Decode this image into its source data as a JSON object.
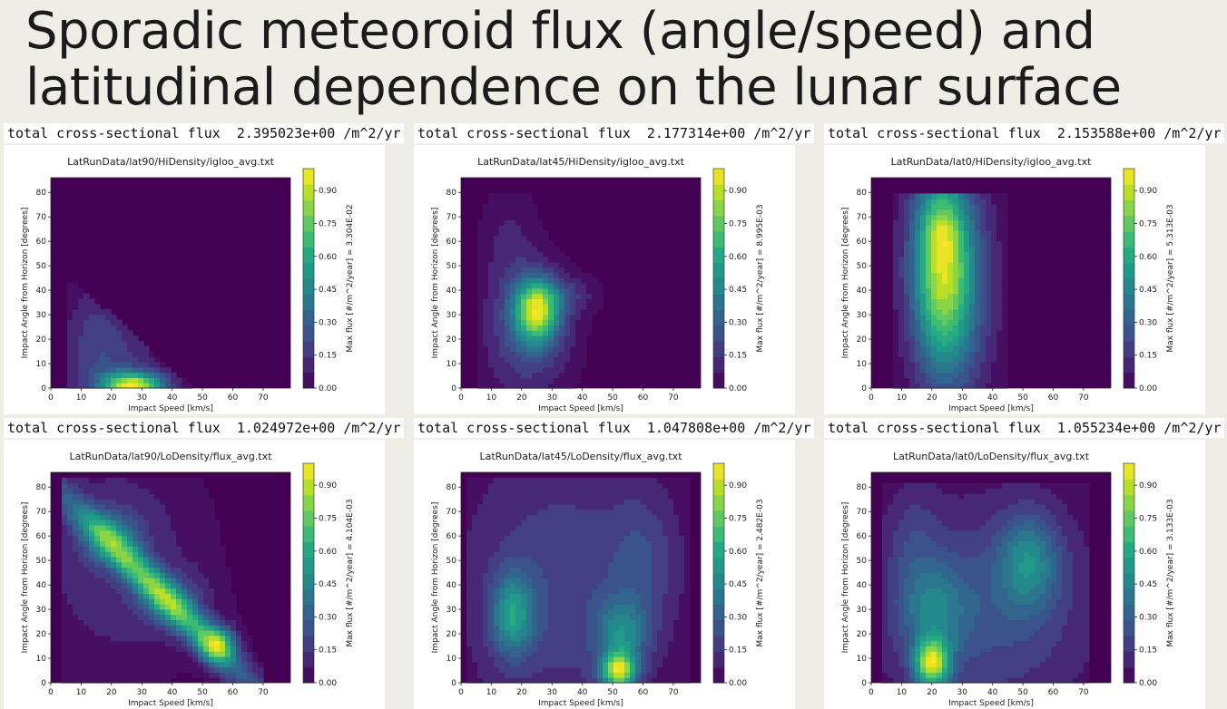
{
  "slide": {
    "title_line1": "Sporadic meteoroid flux (angle/speed) and",
    "title_line2": "latitudinal dependence on the lunar surface"
  },
  "colormap": "viridis",
  "chart_data": [
    {
      "type": "heatmap",
      "flux_label": "total cross-sectional flux  2.395023e+00 /m^2/yr",
      "title": "LatRunData/lat90/HiDensity/igloo_avg.txt",
      "xlabel": "Impact Speed [km/s]",
      "ylabel": "Impact Angle from Horizon [degrees]",
      "colorbar_label": "Max flux [#/m^2/year] = 3.304E-02",
      "xticks": [
        0,
        10,
        20,
        30,
        40,
        50,
        60,
        70
      ],
      "yticks": [
        0,
        10,
        20,
        30,
        40,
        50,
        60,
        70,
        80
      ],
      "colorbar_ticks": [
        "0.00",
        "0.15",
        "0.30",
        "0.45",
        "0.60",
        "0.75",
        "0.90"
      ],
      "xlim": [
        0,
        79
      ],
      "ylim": [
        0,
        86
      ],
      "clim": [
        0,
        1
      ],
      "peak": {
        "speed": 28,
        "angle": 2,
        "value": 1.0
      }
    },
    {
      "type": "heatmap",
      "flux_label": "total cross-sectional flux  2.177314e+00 /m^2/yr",
      "title": "LatRunData/lat45/HiDensity/igloo_avg.txt",
      "xlabel": "Impact Speed [km/s]",
      "ylabel": "Impact Angle from Horizon [degrees]",
      "colorbar_label": "Max flux [#/m^2/year] = 8.995E-03",
      "xticks": [
        0,
        10,
        20,
        30,
        40,
        50,
        60,
        70
      ],
      "yticks": [
        0,
        10,
        20,
        30,
        40,
        50,
        60,
        70,
        80
      ],
      "colorbar_ticks": [
        "0.00",
        "0.15",
        "0.30",
        "0.45",
        "0.60",
        "0.75",
        "0.90"
      ],
      "xlim": [
        0,
        79
      ],
      "ylim": [
        0,
        86
      ],
      "clim": [
        0,
        1
      ],
      "peak": {
        "speed": 25,
        "angle": 32,
        "value": 1.0
      }
    },
    {
      "type": "heatmap",
      "flux_label": "total cross-sectional flux  2.153588e+00 /m^2/yr",
      "title": "LatRunData/lat0/HiDensity/igloo_avg.txt",
      "xlabel": "Impact Speed [km/s]",
      "ylabel": "Impact Angle from Horizon [degrees]",
      "colorbar_label": "Max flux [#/m^2/year] = 5.313E-03",
      "xticks": [
        0,
        10,
        20,
        30,
        40,
        50,
        60,
        70
      ],
      "yticks": [
        0,
        10,
        20,
        30,
        40,
        50,
        60,
        70,
        80
      ],
      "colorbar_ticks": [
        "0.00",
        "0.15",
        "0.30",
        "0.45",
        "0.60",
        "0.75",
        "0.90"
      ],
      "xlim": [
        0,
        79
      ],
      "ylim": [
        0,
        86
      ],
      "clim": [
        0,
        1
      ],
      "peak": {
        "speed": 24,
        "angle": 62,
        "value": 1.0
      }
    },
    {
      "type": "heatmap",
      "flux_label": "total cross-sectional flux  1.024972e+00 /m^2/yr",
      "title": "LatRunData/lat90/LoDensity/flux_avg.txt",
      "xlabel": "Impact Speed [km/s]",
      "ylabel": "Impact Angle from Horizon [degrees]",
      "colorbar_label": "Max flux [#/m^2/year] = 4.104E-03",
      "xticks": [
        0,
        10,
        20,
        30,
        40,
        50,
        60,
        70
      ],
      "yticks": [
        0,
        10,
        20,
        30,
        40,
        50,
        60,
        70,
        80
      ],
      "colorbar_ticks": [
        "0.00",
        "0.15",
        "0.30",
        "0.45",
        "0.60",
        "0.75",
        "0.90"
      ],
      "xlim": [
        0,
        79
      ],
      "ylim": [
        0,
        86
      ],
      "clim": [
        0,
        1
      ],
      "peak": {
        "speed": 54,
        "angle": 16,
        "value": 1.0
      }
    },
    {
      "type": "heatmap",
      "flux_label": "total cross-sectional flux  1.047808e+00 /m^2/yr",
      "title": "LatRunData/lat45/LoDensity/flux_avg.txt",
      "xlabel": "Impact Speed [km/s]",
      "ylabel": "Impact Angle from Horizon [degrees]",
      "colorbar_label": "Max flux [#/m^2/year] = 2.482E-03",
      "xticks": [
        0,
        10,
        20,
        30,
        40,
        50,
        60,
        70
      ],
      "yticks": [
        0,
        10,
        20,
        30,
        40,
        50,
        60,
        70,
        80
      ],
      "colorbar_ticks": [
        "0.00",
        "0.15",
        "0.30",
        "0.45",
        "0.60",
        "0.75",
        "0.90"
      ],
      "xlim": [
        0,
        79
      ],
      "ylim": [
        0,
        86
      ],
      "clim": [
        0,
        1
      ],
      "peak": {
        "speed": 52,
        "angle": 5,
        "value": 1.0
      }
    },
    {
      "type": "heatmap",
      "flux_label": "total cross-sectional flux  1.055234e+00 /m^2/yr",
      "title": "LatRunData/lat0/LoDensity/flux_avg.txt",
      "xlabel": "Impact Speed [km/s]",
      "ylabel": "Impact Angle from Horizon [degrees]",
      "colorbar_label": "Max flux [#/m^2/year] = 3.133E-03",
      "xticks": [
        0,
        10,
        20,
        30,
        40,
        50,
        60,
        70
      ],
      "yticks": [
        0,
        10,
        20,
        30,
        40,
        50,
        60,
        70,
        80
      ],
      "colorbar_ticks": [
        "0.00",
        "0.15",
        "0.30",
        "0.45",
        "0.60",
        "0.75",
        "0.90"
      ],
      "xlim": [
        0,
        79
      ],
      "ylim": [
        0,
        86
      ],
      "clim": [
        0,
        1
      ],
      "peak": {
        "speed": 20,
        "angle": 8,
        "value": 1.0
      }
    }
  ]
}
